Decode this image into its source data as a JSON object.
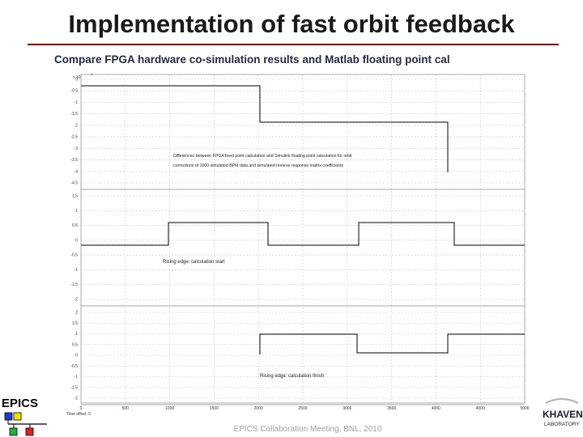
{
  "slide": {
    "title": "Implementation of fast orbit feedback",
    "subtitle": "Compare FPGA hardware co-simulation results and Matlab floating point cal",
    "footer": "EPICS Collaboration Meeting, BNL, 2010"
  },
  "scope": {
    "exponent_label": "x 10",
    "exponent_power": "-4",
    "time_offset_label": "Time offset: 0",
    "x_ticks": [
      "0",
      "500",
      "1000",
      "1500",
      "2000",
      "2500",
      "3000",
      "3500",
      "4000",
      "4500",
      "5000"
    ],
    "panels": [
      {
        "y_ticks": [
          "0",
          "-0.5",
          "-1",
          "-1.5",
          "-2",
          "-2.5",
          "-3",
          "-3.5",
          "-4",
          "-4.5"
        ],
        "annotation_lines": [
          "Differences between FPGA fixed point calculation and Simulink floating point calculation for orbit",
          "corrections of 1000 simulated BPM data and simulated reverse response matrix coefficients"
        ]
      },
      {
        "y_ticks": [
          "1.5",
          "1",
          "0.5",
          "0",
          "-0.5",
          "-1",
          "-1.5",
          "-2"
        ],
        "annotation": "Rising edge: calculation start"
      },
      {
        "y_ticks": [
          "2",
          "1.5",
          "1",
          "0.5",
          "0",
          "-0.5",
          "-1",
          "-1.5",
          "-2"
        ],
        "annotation": "Rising edge: calculation finish"
      }
    ]
  },
  "logos": {
    "epics_text": "EPICS",
    "khaven_text": "KHAVEN",
    "khaven_subtext": "LABORATORY"
  }
}
